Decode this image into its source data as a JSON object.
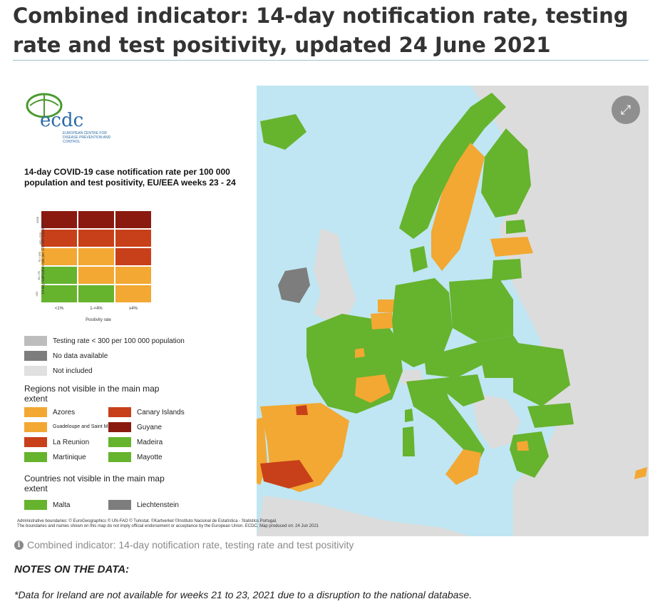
{
  "page": {
    "title": "Combined indicator: 14-day notification rate, testing rate and test positivity, updated 24 June 2021"
  },
  "colors": {
    "sea": "#bfe6f2",
    "non_eu_land": "#dcdcdc",
    "green": "#66b32e",
    "orange": "#f2a832",
    "red": "#c8401a",
    "dark_red": "#8a1a10",
    "testing_low_grey": "#bdbdbd",
    "no_data_grey": "#7d7d7d",
    "not_included": "#e0e0e0"
  },
  "map": {
    "expand_icon": "expand-icon",
    "logo": {
      "text": "ecdc",
      "subtext": "EUROPEAN CENTRE FOR DISEASE PREVENTION AND CONTROL"
    },
    "legend_title": "14-day COVID-19 case notification rate per 100 000 population and test positivity, EU/EEA weeks 23 - 24",
    "matrix": {
      "y_axis_label": "14-day notification rate per 100 000 population",
      "x_axis_label": "Positivity rate",
      "x_ticks": [
        "<1%",
        "1-<4%",
        "≥4%"
      ],
      "y_ticks": [
        "≥200",
        "≥50-<200",
        "75-<150",
        "25-<75",
        "<50"
      ],
      "rows": [
        [
          "dark_red",
          "dark_red",
          "dark_red"
        ],
        [
          "red",
          "red",
          "red"
        ],
        [
          "orange",
          "orange",
          "red"
        ],
        [
          "green",
          "orange",
          "orange"
        ],
        [
          "green",
          "green",
          "orange"
        ]
      ]
    },
    "categories": [
      {
        "label": "Testing rate < 300 per 100 000 population",
        "color": "testing_low_grey"
      },
      {
        "label": "No data available",
        "color": "no_data_grey"
      },
      {
        "label": "Not included",
        "color": "not_included"
      }
    ],
    "regions_heading": "Regions not visible in the main map extent",
    "regions": [
      {
        "label": "Azores",
        "color": "orange"
      },
      {
        "label": "Canary Islands",
        "color": "red"
      },
      {
        "label": "Guadeloupe and Saint Martin",
        "color": "orange"
      },
      {
        "label": "Guyane",
        "color": "dark_red"
      },
      {
        "label": "La Reunion",
        "color": "red"
      },
      {
        "label": "Madeira",
        "color": "green"
      },
      {
        "label": "Martinique",
        "color": "green"
      },
      {
        "label": "Mayotte",
        "color": "green"
      }
    ],
    "countries_heading": "Countries not visible in the main map extent",
    "countries": [
      {
        "label": "Malta",
        "color": "green"
      },
      {
        "label": "Liechtenstein",
        "color": "no_data_grey"
      }
    ],
    "credits_line1": "Administrative boundaries: © EuroGeographics © UN-FAO © Turkstat. ©Kartverket ©Instituto Nacional de Estatística - Statistics Portugal.",
    "credits_line2": "The boundaries and names shown on this map do not imply official endorsement or acceptance by the European Union. ECDC. Map produced on: 24 Jun 2021"
  },
  "caption": {
    "icon": "info-icon",
    "text": "Combined indicator: 14-day notification rate, testing rate and test positivity"
  },
  "notes": {
    "heading": "NOTES ON THE DATA:",
    "footnote": "*Data for Ireland are not available for weeks 21 to 23, 2021 due to a disruption to the national database."
  }
}
